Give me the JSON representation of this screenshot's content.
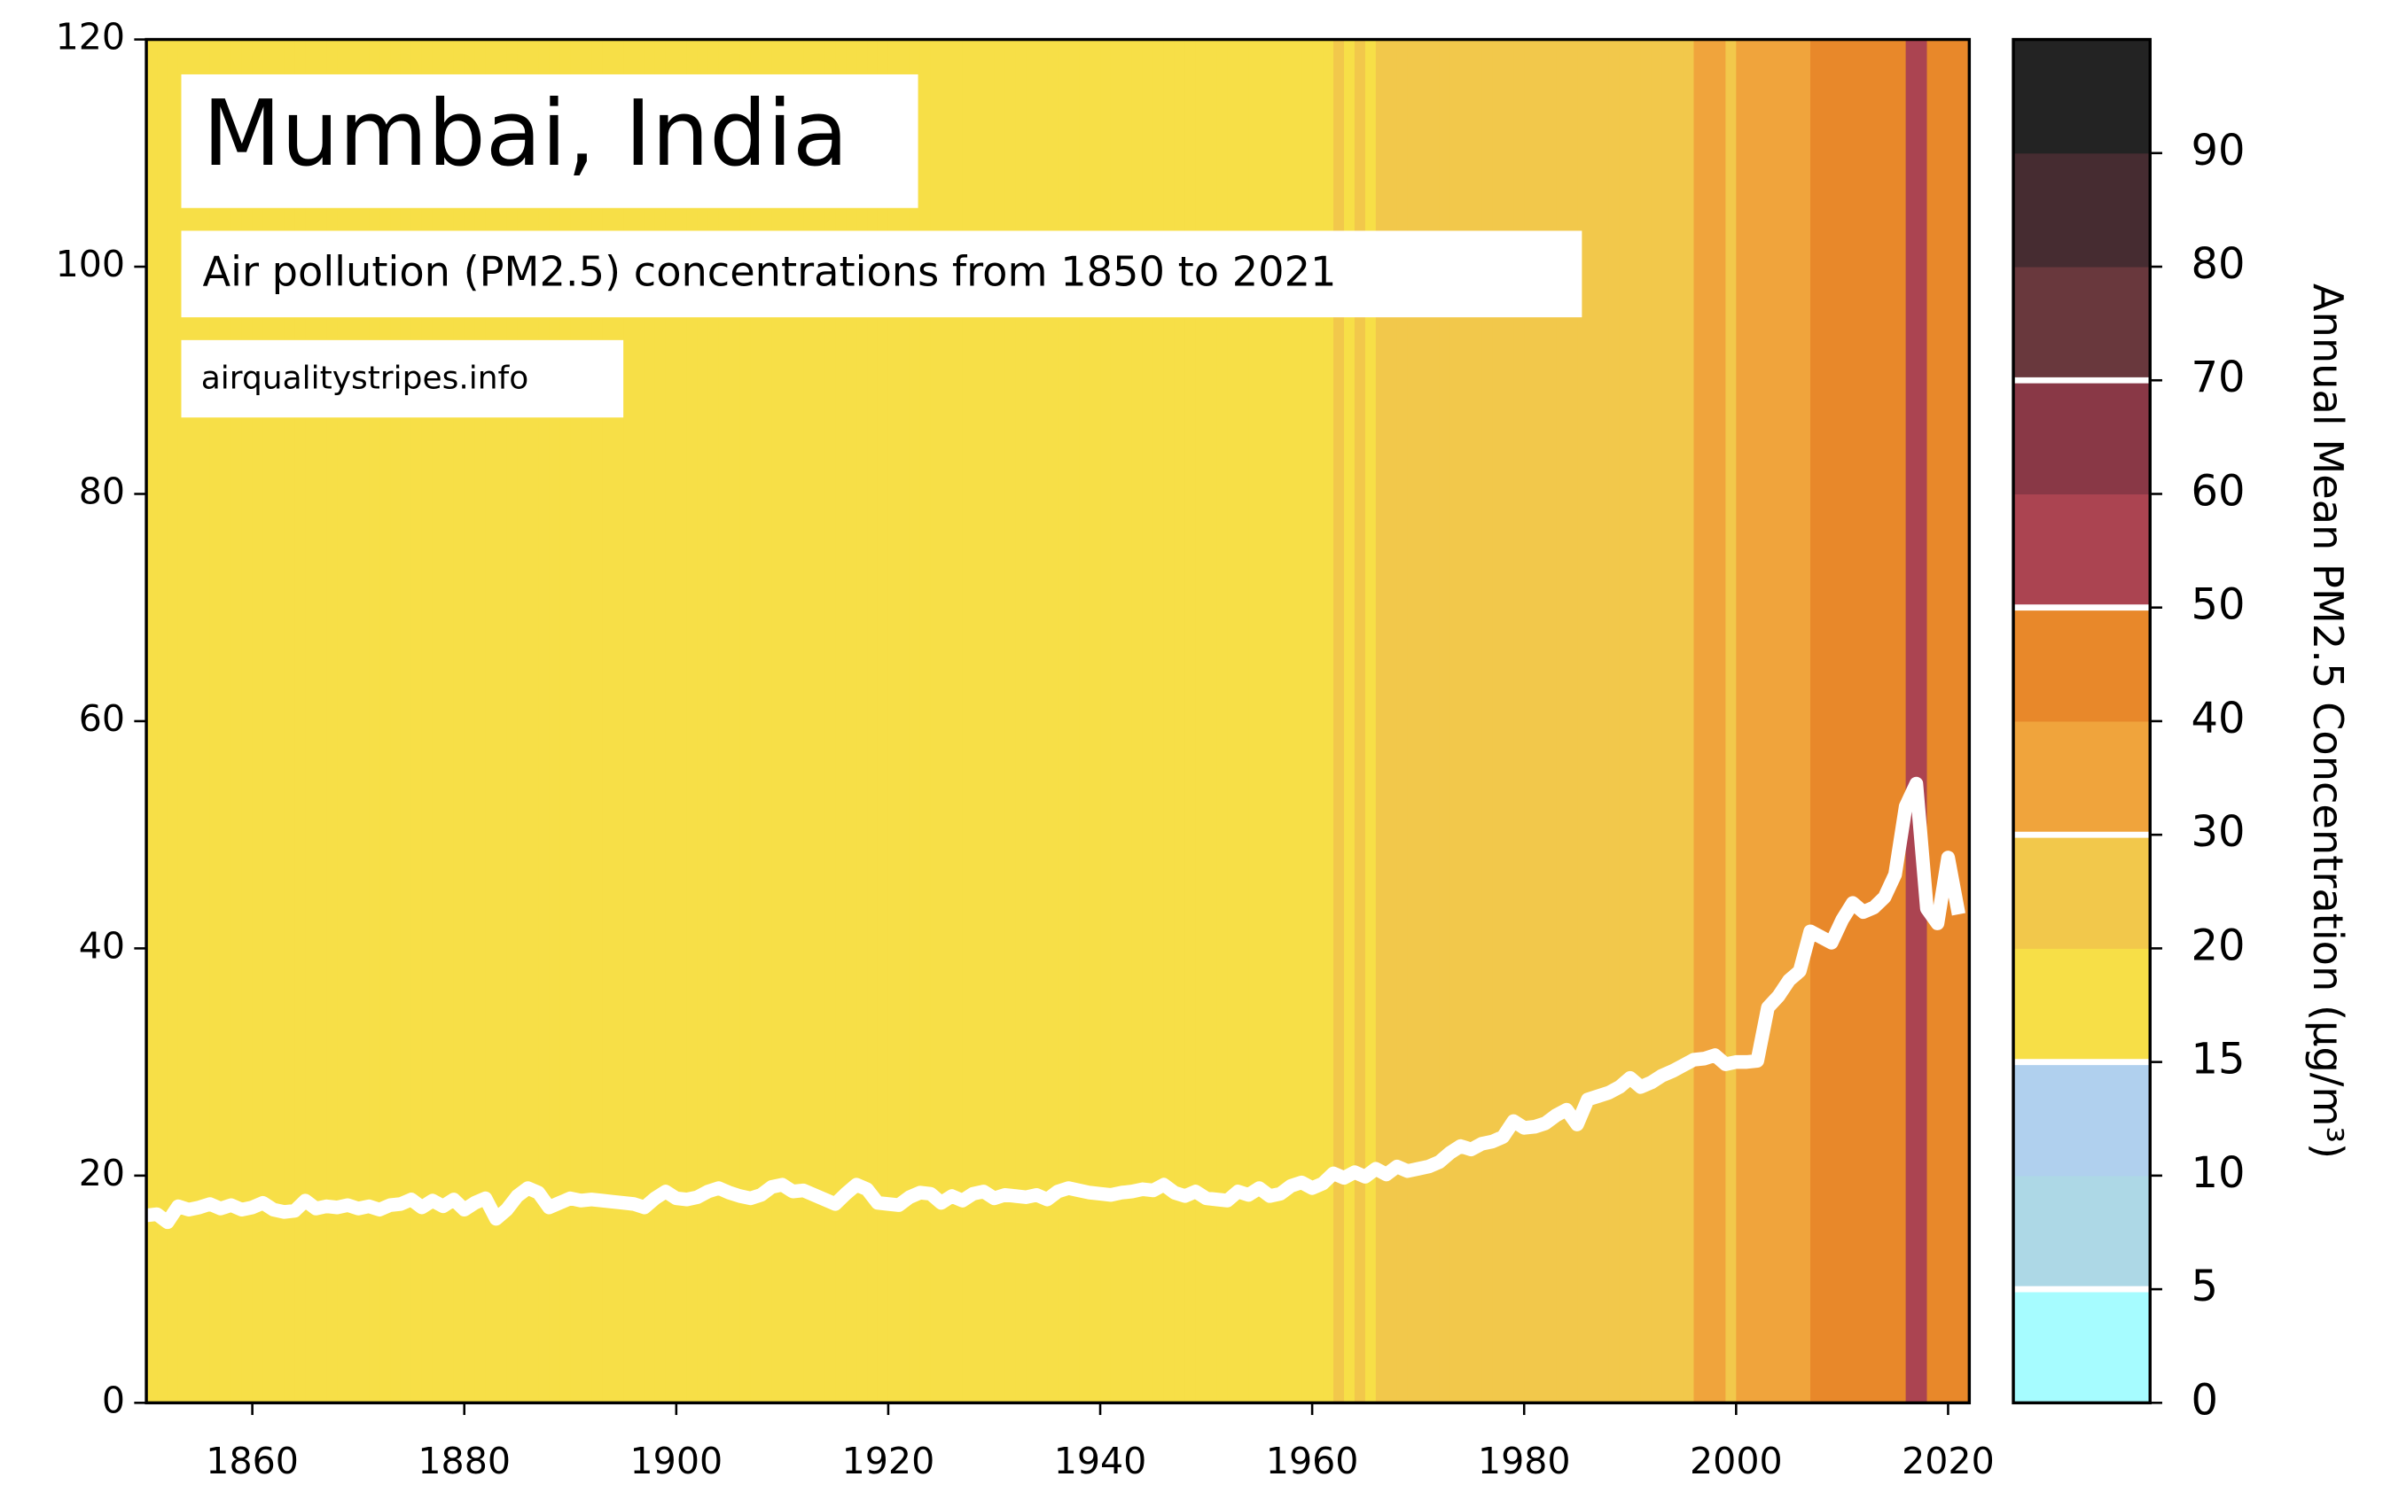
{
  "chart_data": {
    "type": "line",
    "title": "Mumbai, India",
    "subtitle": "Air pollution (PM2.5) concentrations from 1850 to 2021",
    "source": "airqualitystripes.info",
    "x": [
      1850,
      1851,
      1852,
      1853,
      1854,
      1855,
      1856,
      1857,
      1858,
      1859,
      1860,
      1861,
      1862,
      1863,
      1864,
      1865,
      1866,
      1867,
      1868,
      1869,
      1870,
      1871,
      1872,
      1873,
      1874,
      1875,
      1876,
      1877,
      1878,
      1879,
      1880,
      1881,
      1882,
      1883,
      1884,
      1885,
      1886,
      1887,
      1888,
      1889,
      1890,
      1891,
      1892,
      1893,
      1894,
      1895,
      1896,
      1897,
      1898,
      1899,
      1900,
      1901,
      1902,
      1903,
      1904,
      1905,
      1906,
      1907,
      1908,
      1909,
      1910,
      1911,
      1912,
      1913,
      1914,
      1915,
      1916,
      1917,
      1918,
      1919,
      1920,
      1921,
      1922,
      1923,
      1924,
      1925,
      1926,
      1927,
      1928,
      1929,
      1930,
      1931,
      1932,
      1933,
      1934,
      1935,
      1936,
      1937,
      1938,
      1939,
      1940,
      1941,
      1942,
      1943,
      1944,
      1945,
      1946,
      1947,
      1948,
      1949,
      1950,
      1951,
      1952,
      1953,
      1954,
      1955,
      1956,
      1957,
      1958,
      1959,
      1960,
      1961,
      1962,
      1963,
      1964,
      1965,
      1966,
      1967,
      1968,
      1969,
      1970,
      1971,
      1972,
      1973,
      1974,
      1975,
      1976,
      1977,
      1978,
      1979,
      1980,
      1981,
      1982,
      1983,
      1984,
      1985,
      1986,
      1987,
      1988,
      1989,
      1990,
      1991,
      1992,
      1993,
      1994,
      1995,
      1996,
      1997,
      1998,
      1999,
      2000,
      2001,
      2002,
      2003,
      2004,
      2005,
      2006,
      2007,
      2008,
      2009,
      2010,
      2011,
      2012,
      2013,
      2014,
      2015,
      2016,
      2017,
      2018,
      2019,
      2020,
      2021
    ],
    "series": [
      {
        "color": "#ffffff",
        "values": [
          16.5,
          16.6,
          15.9,
          17.3,
          17.0,
          17.2,
          17.5,
          17.1,
          17.4,
          17.0,
          17.2,
          17.6,
          17.0,
          16.8,
          16.9,
          17.8,
          17.1,
          17.3,
          17.2,
          17.4,
          17.1,
          17.3,
          17.0,
          17.4,
          17.5,
          17.9,
          17.2,
          17.8,
          17.3,
          17.9,
          17.0,
          17.6,
          18.0,
          16.2,
          17.0,
          18.2,
          18.9,
          18.5,
          17.2,
          17.6,
          18.0,
          17.8,
          17.9,
          17.8,
          17.7,
          17.6,
          17.5,
          17.2,
          18.0,
          18.6,
          18.0,
          17.9,
          18.1,
          18.6,
          18.9,
          18.5,
          18.2,
          18.0,
          18.3,
          19.0,
          19.2,
          18.6,
          18.7,
          18.3,
          17.9,
          17.5,
          18.4,
          19.2,
          18.8,
          17.6,
          17.5,
          17.4,
          18.1,
          18.5,
          18.4,
          17.6,
          18.2,
          17.8,
          18.4,
          18.6,
          18.0,
          18.3,
          18.2,
          18.1,
          18.3,
          17.9,
          18.6,
          18.9,
          18.7,
          18.5,
          18.4,
          18.3,
          18.5,
          18.6,
          18.8,
          18.7,
          19.2,
          18.5,
          18.2,
          18.6,
          18.0,
          17.9,
          17.8,
          18.6,
          18.3,
          18.9,
          18.2,
          18.4,
          19.1,
          19.4,
          18.9,
          19.3,
          20.2,
          19.8,
          20.3,
          19.9,
          20.6,
          20.1,
          20.8,
          20.4,
          20.6,
          20.8,
          21.2,
          22.0,
          22.6,
          22.3,
          22.8,
          23.0,
          23.4,
          24.8,
          24.2,
          24.3,
          24.6,
          25.3,
          25.8,
          24.5,
          26.7,
          27.0,
          27.3,
          27.8,
          28.6,
          27.8,
          28.2,
          28.8,
          29.2,
          29.7,
          30.2,
          30.3,
          30.6,
          29.8,
          30.0,
          30.0,
          30.1,
          34.8,
          35.8,
          37.2,
          38.0,
          41.5,
          41.0,
          40.5,
          42.5,
          44.0,
          43.2,
          43.6,
          44.5,
          46.5,
          52.5,
          54.5,
          43.5,
          42.2,
          48.0,
          43.0
        ]
      }
    ],
    "xlim": [
      1850,
      2022
    ],
    "xticks": [
      1860,
      1880,
      1900,
      1920,
      1940,
      1960,
      1980,
      2000,
      2020
    ],
    "ylim": [
      0,
      120
    ],
    "yticks": [
      0,
      20,
      40,
      60,
      80,
      100,
      120
    ],
    "colorbar": {
      "label": "Annual Mean PM2.5 Concentration (μg/m³)",
      "bounds": [
        0,
        5,
        10,
        15,
        20,
        30,
        40,
        50,
        60,
        70,
        80,
        90,
        100
      ],
      "colors": [
        "#a6fcff",
        "#add8e6",
        "#b0d0ee",
        "#f7df47",
        "#f2c84b",
        "#f0a43c",
        "#e8882a",
        "#ab4451",
        "#893846",
        "#69383d",
        "#462c31",
        "#232323"
      ],
      "ticks": [
        0,
        5,
        10,
        15,
        20,
        30,
        40,
        50,
        60,
        70,
        80,
        90
      ],
      "lines": [
        5,
        15,
        30,
        50,
        70
      ]
    }
  }
}
